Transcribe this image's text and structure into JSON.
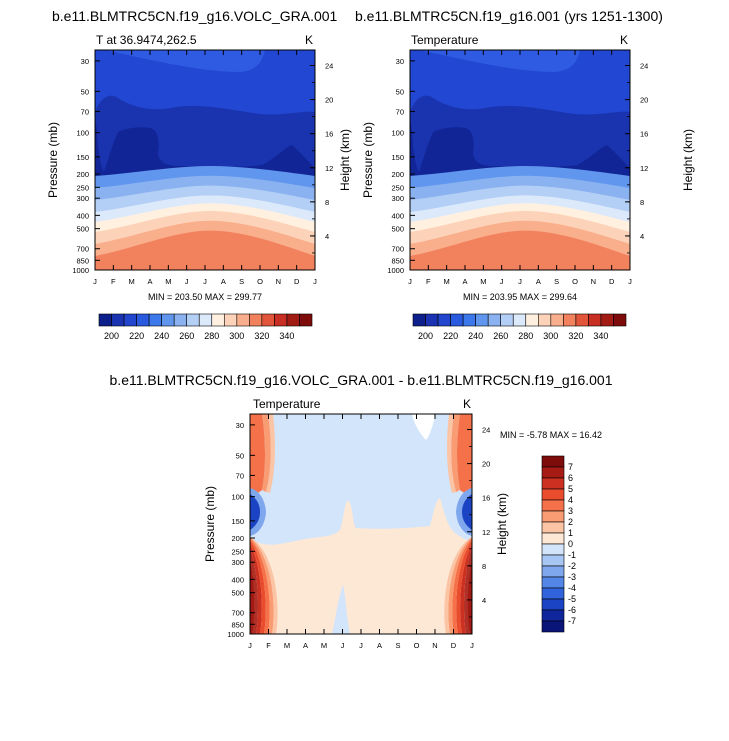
{
  "chart_data": [
    {
      "type": "contour",
      "title": "b.e11.BLMTRC5CN.f19_g16.VOLC_GRA.001",
      "subtitle": "T at 36.9474,262.5",
      "units": "K",
      "xlabel": "",
      "ylabel": "Pressure (mb)",
      "ylabel_right": "Height (km)",
      "x_ticks": [
        "J",
        "F",
        "M",
        "A",
        "M",
        "J",
        "J",
        "A",
        "S",
        "O",
        "N",
        "D",
        "J"
      ],
      "y_ticks": [
        "30",
        "50",
        "70",
        "100",
        "150",
        "200",
        "250",
        "300",
        "400",
        "500",
        "700",
        "850",
        "1000"
      ],
      "height_ticks": [
        "24",
        "20",
        "16",
        "12",
        "8",
        "4"
      ],
      "ylim": [
        1000,
        25
      ],
      "min_max": "MIN = 203.50 MAX = 299.77",
      "annual_cycle_levels": {
        "pressure_mb": [
          30,
          70,
          100,
          200,
          300,
          500,
          700,
          850,
          1000
        ],
        "jan_K": [
          222,
          210,
          207,
          218,
          230,
          255,
          270,
          277,
          282
        ],
        "jul_K": [
          213,
          211,
          206,
          224,
          238,
          263,
          280,
          290,
          298
        ]
      }
    },
    {
      "type": "contour",
      "title": "b.e11.BLMTRC5CN.f19_g16.001 (yrs 1251-1300)",
      "subtitle": "Temperature",
      "units": "K",
      "ylabel": "Pressure (mb)",
      "ylabel_right": "Height (km)",
      "x_ticks": [
        "J",
        "F",
        "M",
        "A",
        "M",
        "J",
        "J",
        "A",
        "S",
        "O",
        "N",
        "D",
        "J"
      ],
      "y_ticks": [
        "30",
        "50",
        "70",
        "100",
        "150",
        "200",
        "250",
        "300",
        "400",
        "500",
        "700",
        "850",
        "1000"
      ],
      "height_ticks": [
        "24",
        "20",
        "16",
        "12",
        "8",
        "4"
      ],
      "ylim": [
        1000,
        25
      ],
      "min_max": "MIN = 203.95 MAX = 299.64",
      "annual_cycle_levels": {
        "pressure_mb": [
          30,
          70,
          100,
          200,
          300,
          500,
          700,
          850,
          1000
        ],
        "jan_K": [
          222,
          210,
          207,
          218,
          230,
          255,
          270,
          277,
          282
        ],
        "jul_K": [
          213,
          211,
          206,
          224,
          238,
          263,
          280,
          290,
          298
        ]
      }
    },
    {
      "type": "contour",
      "title": "b.e11.BLMTRC5CN.f19_g16.VOLC_GRA.001 - b.e11.BLMTRC5CN.f19_g16.001",
      "subtitle": "Temperature",
      "units": "K",
      "ylabel": "Pressure (mb)",
      "ylabel_right": "Height (km)",
      "x_ticks": [
        "J",
        "F",
        "M",
        "A",
        "M",
        "J",
        "J",
        "A",
        "S",
        "O",
        "N",
        "D",
        "J"
      ],
      "y_ticks": [
        "30",
        "50",
        "70",
        "100",
        "150",
        "200",
        "250",
        "300",
        "400",
        "500",
        "700",
        "850",
        "1000"
      ],
      "height_ticks": [
        "24",
        "20",
        "16",
        "12",
        "8",
        "4"
      ],
      "ylim": [
        1000,
        25
      ],
      "min_max": "MIN =  -5.78 MAX =  16.42"
    }
  ],
  "colorbar_abs": {
    "labels": [
      "200",
      "220",
      "240",
      "260",
      "280",
      "300",
      "320",
      "340"
    ],
    "colors": [
      "#0d1f8a",
      "#1a33b3",
      "#2145cc",
      "#2a5ae0",
      "#3c78ea",
      "#6096ed",
      "#8ab2f0",
      "#b4cff5",
      "#dce9fb",
      "#fff0e0",
      "#fcd3b8",
      "#f9ae8c",
      "#f2815e",
      "#e2553a",
      "#c62f22",
      "#a31c14",
      "#7e0c0a"
    ]
  },
  "colorbar_diff": {
    "labels": [
      "7",
      "6",
      "5",
      "4",
      "3",
      "2",
      "1",
      "0",
      "-1",
      "-2",
      "-3",
      "-4",
      "-5",
      "-6",
      "-7"
    ],
    "colors": [
      "#7e0c0a",
      "#a61c14",
      "#cc3020",
      "#e94d2e",
      "#f57149",
      "#f99b73",
      "#fbc4a4",
      "#fde8d6",
      "#d3e5fa",
      "#a8c6f3",
      "#7ea7ee",
      "#5486e8",
      "#3164dc",
      "#1b44c4",
      "#10279c",
      "#0a157a"
    ]
  }
}
